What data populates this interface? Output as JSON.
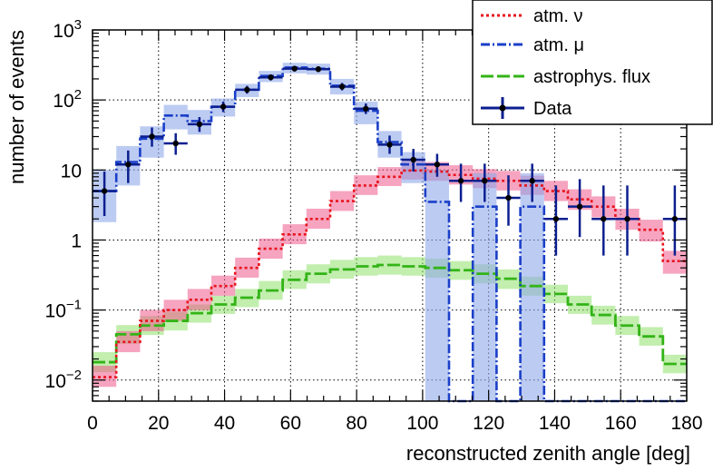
{
  "chart_data": {
    "type": "histogram",
    "xlabel": "reconstructed zenith angle [deg]",
    "ylabel": "number of events",
    "xlim": [
      0,
      180
    ],
    "ylim": [
      0.005,
      1000
    ],
    "yscale": "log",
    "grid": true,
    "legend_position": "top-right",
    "x_ticks": [
      "0",
      "20",
      "40",
      "60",
      "80",
      "100",
      "120",
      "140",
      "160",
      "180"
    ],
    "y_tick_labels": [
      {
        "value": 1000,
        "base": "10",
        "exp": "3"
      },
      {
        "value": 100,
        "base": "10",
        "exp": "2"
      },
      {
        "value": 10,
        "base": "10",
        "exp": ""
      },
      {
        "value": 1,
        "base": "1",
        "exp": ""
      },
      {
        "value": 0.1,
        "base": "10",
        "exp": "−1"
      },
      {
        "value": 0.01,
        "base": "10",
        "exp": "−2"
      }
    ],
    "bin_edges": [
      0,
      7.2,
      14.4,
      21.6,
      28.8,
      36,
      43.2,
      50.4,
      57.6,
      64.8,
      72,
      79.2,
      86.4,
      93.6,
      100.8,
      108,
      115.2,
      122.4,
      129.6,
      136.8,
      144,
      151.2,
      158.4,
      165.6,
      172.8,
      180
    ],
    "series": [
      {
        "name": "atm. ν",
        "color": "#e8141e",
        "band_color": "#ee5a8c",
        "values": [
          0.011,
          0.035,
          0.07,
          0.1,
          0.14,
          0.22,
          0.4,
          0.75,
          1.2,
          2.0,
          3.6,
          6.0,
          8.0,
          9.8,
          9.5,
          8.5,
          7.5,
          7.0,
          6.0,
          5.0,
          3.8,
          3.0,
          2.0,
          1.4,
          0.5
        ],
        "band_low": [
          0.008,
          0.025,
          0.05,
          0.07,
          0.1,
          0.16,
          0.29,
          0.54,
          0.87,
          1.45,
          2.6,
          4.4,
          5.9,
          7.3,
          7.0,
          6.2,
          5.5,
          5.1,
          4.4,
          3.6,
          2.7,
          2.1,
          1.4,
          0.95,
          0.33
        ],
        "band_high": [
          0.016,
          0.05,
          0.1,
          0.14,
          0.2,
          0.31,
          0.56,
          1.05,
          1.68,
          2.8,
          5.0,
          8.4,
          11,
          13.5,
          13,
          11.7,
          10.3,
          9.7,
          8.3,
          7.0,
          5.3,
          4.2,
          2.8,
          1.95,
          0.7
        ]
      },
      {
        "name": "atm. μ",
        "color": "#1a3fc8",
        "band_color": "#8fa8ea",
        "values": [
          5.0,
          13.0,
          28.0,
          60.0,
          50.0,
          80.0,
          140.0,
          220.0,
          290.0,
          280.0,
          160.0,
          70.0,
          25.0,
          12.0,
          3.5,
          0.005,
          3.0,
          0.005,
          3.0,
          0.005,
          0.005,
          0.005,
          0.005,
          0.005,
          0.005
        ],
        "band_low": [
          1.8,
          6.0,
          15.0,
          38.0,
          32.0,
          58.0,
          110.0,
          180.0,
          240.0,
          230.0,
          120.0,
          45.0,
          15.0,
          6.5,
          0.005,
          null,
          0.005,
          null,
          0.005,
          null,
          null,
          null,
          null,
          null,
          null
        ],
        "band_high": [
          10.0,
          22.0,
          42.0,
          85.0,
          72.0,
          105.0,
          170.0,
          260.0,
          340.0,
          330.0,
          200.0,
          95.0,
          36.0,
          18.0,
          10.0,
          null,
          9.0,
          null,
          9.0,
          null,
          null,
          null,
          null,
          null,
          null
        ]
      },
      {
        "name": "astrophys. flux",
        "color": "#33b417",
        "band_color": "#8fe06c",
        "values": [
          0.018,
          0.045,
          0.06,
          0.07,
          0.09,
          0.12,
          0.15,
          0.19,
          0.27,
          0.33,
          0.38,
          0.42,
          0.44,
          0.42,
          0.4,
          0.37,
          0.33,
          0.28,
          0.22,
          0.17,
          0.12,
          0.085,
          0.06,
          0.042,
          0.017
        ],
        "band_low": [
          0.013,
          0.033,
          0.044,
          0.051,
          0.066,
          0.088,
          0.11,
          0.14,
          0.2,
          0.24,
          0.28,
          0.31,
          0.32,
          0.31,
          0.29,
          0.27,
          0.24,
          0.2,
          0.16,
          0.125,
          0.088,
          0.062,
          0.044,
          0.031,
          0.0125
        ],
        "band_high": [
          0.025,
          0.061,
          0.082,
          0.095,
          0.12,
          0.16,
          0.2,
          0.26,
          0.37,
          0.45,
          0.52,
          0.57,
          0.6,
          0.57,
          0.54,
          0.5,
          0.45,
          0.38,
          0.3,
          0.23,
          0.16,
          0.115,
          0.082,
          0.057,
          0.023
        ]
      }
    ],
    "data_points": {
      "name": "Data",
      "color": "#0b1f8f",
      "x": [
        3.6,
        10.8,
        18,
        25.2,
        32.4,
        39.6,
        46.8,
        54,
        61.2,
        68.4,
        75.6,
        82.8,
        90,
        97.2,
        104.4,
        111.6,
        118.8,
        126,
        133.2,
        140.4,
        147.6,
        154.8,
        162,
        169.2,
        176.4
      ],
      "y": [
        5,
        12,
        30,
        24,
        45,
        80,
        140,
        210,
        280,
        275,
        155,
        75,
        23,
        14,
        12,
        7,
        7,
        4,
        7,
        2,
        3,
        2,
        2,
        0.005,
        2
      ],
      "err_low": [
        2.8,
        5.5,
        8.5,
        7.5,
        10,
        13,
        17,
        20,
        24,
        24,
        18,
        12,
        6,
        4.5,
        4,
        3.5,
        3.5,
        2.4,
        3.5,
        1.4,
        1.9,
        1.4,
        1.4,
        null,
        1.4
      ],
      "err_high": [
        4.5,
        7.0,
        10.5,
        9.5,
        12,
        15,
        19,
        22,
        26,
        26,
        20,
        14,
        8,
        6,
        5,
        5.3,
        5.3,
        4.4,
        5.3,
        4.0,
        4.4,
        4.0,
        4.0,
        null,
        4.0
      ]
    }
  }
}
